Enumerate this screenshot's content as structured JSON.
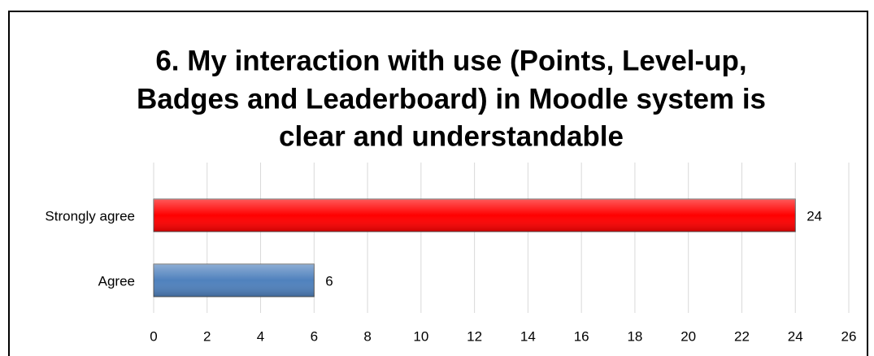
{
  "chart_data": {
    "type": "hbar",
    "title": [
      "6. My interaction with use (Points, Level-up,",
      "Badges and Leaderboard) in Moodle system is",
      "clear and understandable"
    ],
    "categories": [
      "Strongly agree",
      "Agree"
    ],
    "values": [
      24,
      6
    ],
    "colors": [
      "#ff0000",
      "#4f81bd"
    ],
    "xlim": [
      0,
      26
    ],
    "xticks": [
      0,
      2,
      4,
      6,
      8,
      10,
      12,
      14,
      16,
      18,
      20,
      22,
      24,
      26
    ],
    "grid": true
  }
}
